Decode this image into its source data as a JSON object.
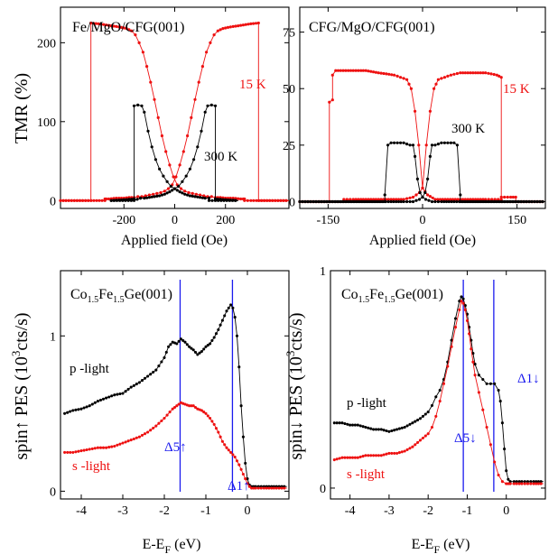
{
  "colors": {
    "red": "#ee1111",
    "black": "#000000",
    "blue": "#1a1aee"
  },
  "chart_data": [
    {
      "type": "line",
      "title": "Fe/MgO/CFG(001)",
      "xlabel": "Applied field (Oe)",
      "ylabel": "TMR (%)",
      "xlim": [
        -450,
        450
      ],
      "ylim": [
        -10,
        245
      ],
      "xticks": [
        -200,
        0,
        200
      ],
      "xticklabels": [
        "-200",
        "0",
        "200"
      ],
      "yticks": [
        0,
        100,
        200
      ],
      "yticklabels": [
        "0",
        "100",
        "200"
      ],
      "series": [
        {
          "name": "15 K",
          "color": "#ee1111",
          "x": [
            -450,
            -330,
            -330,
            -300,
            -260,
            -220,
            -190,
            -170,
            -155,
            -140,
            -125,
            -110,
            -95,
            -80,
            -65,
            -50,
            -35,
            -20,
            -5,
            10,
            25,
            40,
            55,
            70,
            85,
            100,
            115,
            130,
            145,
            160,
            180,
            200,
            230,
            260,
            270,
            275,
            275,
            300,
            450
          ],
          "y": [
            0,
            0,
            225,
            224,
            222,
            220,
            218,
            215,
            210,
            200,
            188,
            170,
            150,
            128,
            105,
            82,
            62,
            45,
            30,
            20,
            15,
            12,
            10,
            9,
            8,
            7,
            6,
            5,
            5,
            4,
            4,
            3,
            3,
            2,
            2,
            2,
            0,
            0,
            0
          ]
        },
        {
          "name": "15 K",
          "color": "#ee1111",
          "x": [
            -450,
            -275,
            -275,
            -270,
            -260,
            -230,
            -200,
            -180,
            -160,
            -145,
            -130,
            -115,
            -100,
            -85,
            -70,
            -55,
            -40,
            -25,
            -10,
            5,
            20,
            35,
            50,
            65,
            80,
            95,
            110,
            125,
            140,
            155,
            170,
            190,
            220,
            260,
            300,
            330,
            330,
            450
          ],
          "y": [
            0,
            0,
            2,
            2,
            2,
            3,
            3,
            4,
            4,
            5,
            5,
            6,
            7,
            8,
            9,
            10,
            12,
            15,
            20,
            30,
            45,
            62,
            82,
            105,
            128,
            150,
            170,
            188,
            200,
            210,
            215,
            218,
            220,
            222,
            224,
            225,
            0,
            0
          ]
        },
        {
          "name": "300 K",
          "color": "#000000",
          "x": [
            -250,
            -200,
            -160,
            -160,
            -145,
            -130,
            -120,
            -105,
            -90,
            -75,
            -60,
            -45,
            -30,
            -15,
            0,
            20,
            40,
            60,
            80,
            100,
            120,
            135,
            135,
            160,
            250
          ],
          "y": [
            0,
            1,
            2,
            120,
            121,
            120,
            112,
            88,
            68,
            52,
            40,
            31,
            24,
            18,
            15,
            11,
            8,
            6,
            5,
            4,
            3,
            3,
            0,
            0,
            0
          ]
        },
        {
          "name": "300 K",
          "color": "#000000",
          "x": [
            -250,
            -160,
            -135,
            -135,
            -120,
            -100,
            -80,
            -60,
            -40,
            -20,
            0,
            15,
            30,
            45,
            60,
            75,
            90,
            105,
            120,
            130,
            145,
            160,
            160,
            200,
            250
          ],
          "y": [
            0,
            0,
            3,
            3,
            3,
            4,
            5,
            6,
            8,
            11,
            15,
            18,
            24,
            31,
            40,
            52,
            68,
            88,
            112,
            120,
            121,
            120,
            2,
            1,
            0
          ]
        }
      ],
      "annotations": [
        "15 K",
        "300 K"
      ]
    },
    {
      "type": "line",
      "title": "CFG/MgO/CFG(001)",
      "xlabel": "Applied field (Oe)",
      "ylabel": "",
      "xlim": [
        -195,
        195
      ],
      "ylim": [
        -3,
        86
      ],
      "xticks": [
        -150,
        0,
        150
      ],
      "xticklabels": [
        "-150",
        "0",
        "150"
      ],
      "yticks": [
        0,
        25,
        50,
        75
      ],
      "yticklabels": [
        "0",
        "25",
        "50",
        "75"
      ],
      "series": [
        {
          "name": "15 K",
          "color": "#ee1111",
          "x": [
            -195,
            -148,
            -148,
            -143,
            -143,
            -138,
            -130,
            -110,
            -90,
            -70,
            -45,
            -35,
            -25,
            -18,
            -12,
            -6,
            0,
            8,
            20,
            40,
            60,
            80,
            100,
            115,
            125,
            125,
            140,
            195
          ],
          "y": [
            0,
            0,
            44,
            45,
            56,
            58,
            58,
            58,
            58,
            57,
            56,
            55,
            54,
            50,
            40,
            25,
            6,
            3,
            1,
            1,
            1,
            1,
            1,
            1,
            1,
            0,
            0,
            0
          ]
        },
        {
          "name": "15 K",
          "color": "#ee1111",
          "x": [
            -195,
            -125,
            -125,
            -110,
            -90,
            -70,
            -50,
            -30,
            -15,
            -5,
            0,
            6,
            12,
            18,
            25,
            35,
            45,
            60,
            80,
            100,
            118,
            125,
            125,
            130,
            140,
            148,
            148,
            195
          ],
          "y": [
            0,
            0,
            1,
            1,
            1,
            1,
            1,
            1,
            2,
            4,
            6,
            25,
            40,
            50,
            54,
            55,
            56,
            57,
            57,
            57,
            56,
            55,
            2,
            2,
            2,
            2,
            0,
            0
          ]
        },
        {
          "name": "300 K",
          "color": "#000000",
          "x": [
            -195,
            -60,
            -60,
            -55,
            -50,
            -40,
            -30,
            -20,
            -15,
            -12,
            -8,
            -4,
            0,
            5,
            15,
            30,
            50,
            195
          ],
          "y": [
            0,
            0,
            3,
            25,
            26,
            26,
            26,
            25,
            25,
            20,
            10,
            4,
            2,
            1,
            0,
            0,
            0,
            0
          ]
        },
        {
          "name": "300 K",
          "color": "#000000",
          "x": [
            -195,
            -50,
            -30,
            -15,
            -5,
            0,
            4,
            8,
            12,
            15,
            20,
            30,
            40,
            50,
            55,
            60,
            60,
            195
          ],
          "y": [
            0,
            0,
            0,
            0,
            1,
            2,
            4,
            10,
            20,
            25,
            25,
            26,
            26,
            26,
            25,
            3,
            0,
            0
          ]
        }
      ],
      "annotations": [
        "15 K",
        "300 K"
      ]
    },
    {
      "type": "line",
      "title": "Co1.5Fe1.5Ge(001)",
      "title_parts": {
        "a": "Co",
        "b": "1.5",
        "c": "Fe",
        "d": "1.5",
        "e": "Ge(001)"
      },
      "xlabel": "E-EF (eV)",
      "xlabel_parts": {
        "a": "E-E",
        "b": "F",
        "c": " (eV)"
      },
      "ylabel": "spin↑ PES (103cts/s)",
      "ylabel_parts": {
        "a": "spin↑ PES (10",
        "b": "3",
        "c": "cts/s)"
      },
      "xlim": [
        -4.5,
        1.0
      ],
      "ylim": [
        -0.05,
        1.42
      ],
      "xticks": [
        -4,
        -3,
        -2,
        -1,
        0
      ],
      "xticklabels": [
        "-4",
        "-3",
        "-2",
        "-1",
        "0"
      ],
      "yticks": [
        0,
        1
      ],
      "yticklabels": [
        "0",
        "1"
      ],
      "series": [
        {
          "name": "p -light",
          "color": "#000000",
          "x": [
            -4.4,
            -4.2,
            -4.0,
            -3.8,
            -3.6,
            -3.4,
            -3.2,
            -3.0,
            -2.8,
            -2.6,
            -2.4,
            -2.2,
            -2.0,
            -1.9,
            -1.8,
            -1.7,
            -1.6,
            -1.5,
            -1.4,
            -1.3,
            -1.2,
            -1.1,
            -1.0,
            -0.9,
            -0.8,
            -0.7,
            -0.6,
            -0.5,
            -0.4,
            -0.35,
            -0.3,
            -0.25,
            -0.2,
            -0.15,
            -0.1,
            -0.05,
            0.0,
            0.05,
            0.1,
            0.2,
            0.4,
            0.7,
            0.95
          ],
          "y": [
            0.5,
            0.52,
            0.53,
            0.55,
            0.58,
            0.6,
            0.62,
            0.63,
            0.67,
            0.7,
            0.74,
            0.78,
            0.86,
            0.93,
            0.96,
            0.95,
            0.98,
            0.96,
            0.93,
            0.91,
            0.88,
            0.9,
            0.93,
            0.95,
            0.99,
            1.04,
            1.1,
            1.16,
            1.2,
            1.18,
            1.12,
            1.0,
            0.8,
            0.55,
            0.35,
            0.18,
            0.08,
            0.04,
            0.03,
            0.03,
            0.03,
            0.03,
            0.03
          ]
        },
        {
          "name": "s -light",
          "color": "#ee1111",
          "x": [
            -4.4,
            -4.2,
            -4.0,
            -3.8,
            -3.6,
            -3.4,
            -3.2,
            -3.0,
            -2.8,
            -2.6,
            -2.4,
            -2.2,
            -2.0,
            -1.8,
            -1.7,
            -1.6,
            -1.5,
            -1.4,
            -1.3,
            -1.2,
            -1.1,
            -1.0,
            -0.9,
            -0.8,
            -0.7,
            -0.6,
            -0.5,
            -0.4,
            -0.3,
            -0.2,
            -0.1,
            0.0,
            0.05,
            0.1,
            0.2,
            0.4,
            0.7,
            0.95
          ],
          "y": [
            0.25,
            0.25,
            0.26,
            0.27,
            0.28,
            0.28,
            0.29,
            0.31,
            0.33,
            0.35,
            0.38,
            0.42,
            0.47,
            0.53,
            0.55,
            0.57,
            0.56,
            0.55,
            0.55,
            0.53,
            0.52,
            0.5,
            0.47,
            0.43,
            0.38,
            0.32,
            0.28,
            0.25,
            0.22,
            0.17,
            0.11,
            0.05,
            0.03,
            0.02,
            0.02,
            0.02,
            0.02,
            0.02
          ]
        }
      ],
      "markers": [
        {
          "label": "Δ5↑",
          "x": -1.62
        },
        {
          "label": "Δ1↑",
          "x": -0.36
        }
      ],
      "annotations": [
        "p -light",
        "s -light",
        "Δ5↑",
        "Δ1↑"
      ]
    },
    {
      "type": "line",
      "title": "Co1.5Fe1.5Ge(001)",
      "title_parts": {
        "a": "Co",
        "b": "1.5",
        "c": "Fe",
        "d": "1.5",
        "e": "Ge(001)"
      },
      "xlabel": "E-EF (eV)",
      "xlabel_parts": {
        "a": "E-E",
        "b": "F",
        "c": " (eV)"
      },
      "ylabel": "spin↓ PES (103cts/s)",
      "ylabel_parts": {
        "a": "spin↓ PES (10",
        "b": "3",
        "c": "cts/s)"
      },
      "xlim": [
        -4.5,
        1.0
      ],
      "ylim": [
        -0.05,
        1.0
      ],
      "xticks": [
        -4,
        -3,
        -2,
        -1,
        0
      ],
      "xticklabels": [
        "-4",
        "-3",
        "-2",
        "-1",
        "0"
      ],
      "yticks": [
        0,
        1
      ],
      "yticklabels": [
        "0",
        "1"
      ],
      "series": [
        {
          "name": "p -light",
          "color": "#000000",
          "x": [
            -4.4,
            -4.2,
            -4.0,
            -3.8,
            -3.6,
            -3.4,
            -3.2,
            -3.0,
            -2.8,
            -2.6,
            -2.4,
            -2.2,
            -2.0,
            -1.9,
            -1.8,
            -1.7,
            -1.6,
            -1.5,
            -1.4,
            -1.3,
            -1.2,
            -1.15,
            -1.1,
            -1.05,
            -1.0,
            -0.95,
            -0.9,
            -0.85,
            -0.8,
            -0.7,
            -0.6,
            -0.5,
            -0.4,
            -0.3,
            -0.2,
            -0.15,
            -0.1,
            -0.05,
            0.0,
            0.05,
            0.1,
            0.2,
            0.4,
            0.7,
            0.95
          ],
          "y": [
            0.3,
            0.3,
            0.29,
            0.29,
            0.28,
            0.27,
            0.27,
            0.26,
            0.27,
            0.28,
            0.3,
            0.32,
            0.35,
            0.38,
            0.42,
            0.45,
            0.5,
            0.58,
            0.68,
            0.78,
            0.86,
            0.88,
            0.87,
            0.84,
            0.8,
            0.74,
            0.68,
            0.62,
            0.57,
            0.52,
            0.5,
            0.48,
            0.48,
            0.48,
            0.45,
            0.4,
            0.3,
            0.18,
            0.08,
            0.04,
            0.03,
            0.03,
            0.03,
            0.03,
            0.03
          ]
        },
        {
          "name": "s -light",
          "color": "#ee1111",
          "x": [
            -4.4,
            -4.2,
            -4.0,
            -3.8,
            -3.6,
            -3.4,
            -3.2,
            -3.0,
            -2.8,
            -2.6,
            -2.4,
            -2.2,
            -2.0,
            -1.9,
            -1.8,
            -1.7,
            -1.6,
            -1.5,
            -1.4,
            -1.3,
            -1.2,
            -1.15,
            -1.1,
            -1.05,
            -1.0,
            -0.95,
            -0.9,
            -0.85,
            -0.8,
            -0.7,
            -0.6,
            -0.5,
            -0.4,
            -0.3,
            -0.2,
            -0.1,
            0.0,
            0.05,
            0.1,
            0.2,
            0.4,
            0.7,
            0.95
          ],
          "y": [
            0.13,
            0.14,
            0.14,
            0.14,
            0.15,
            0.15,
            0.15,
            0.16,
            0.16,
            0.17,
            0.19,
            0.22,
            0.25,
            0.28,
            0.33,
            0.4,
            0.48,
            0.56,
            0.65,
            0.74,
            0.82,
            0.86,
            0.85,
            0.82,
            0.77,
            0.71,
            0.64,
            0.58,
            0.52,
            0.44,
            0.36,
            0.28,
            0.2,
            0.12,
            0.06,
            0.03,
            0.02,
            0.02,
            0.02,
            0.02,
            0.02,
            0.02,
            0.02
          ]
        }
      ],
      "markers": [
        {
          "label": "Δ5↓",
          "x": -1.1
        },
        {
          "label": "Δ1↓",
          "x": -0.32
        }
      ],
      "annotations": [
        "p -light",
        "s -light",
        "Δ5↓",
        "Δ1↓"
      ]
    }
  ]
}
